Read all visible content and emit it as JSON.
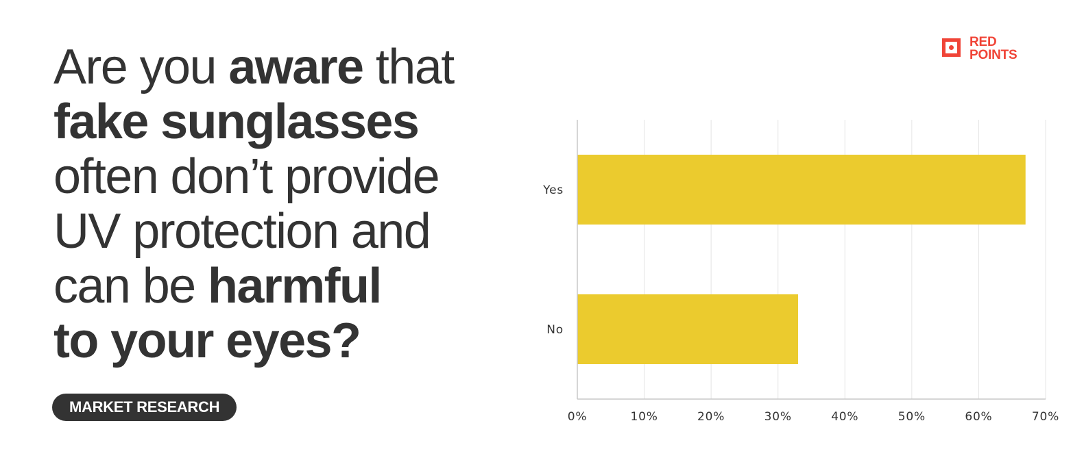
{
  "headline": {
    "line1": [
      "Are you ",
      "aware",
      " that"
    ],
    "line2": "fake sunglasses",
    "line3": "often don’t provide",
    "line4": "UV protection and",
    "line5": [
      "can be ",
      "harmful"
    ],
    "line6": "to your eyes?"
  },
  "tag": "MARKET RESEARCH",
  "logo": {
    "line1": "RED",
    "line2": "POINTS",
    "color": "#f04437"
  },
  "colors": {
    "bar": "#ebcb2e",
    "text": "#333333",
    "grid": "#e4e4e4",
    "axis": "#c8c8c8"
  },
  "chart_data": {
    "type": "bar",
    "orientation": "horizontal",
    "categories": [
      "Yes",
      "No"
    ],
    "values": [
      67,
      33
    ],
    "xlim": [
      0,
      70
    ],
    "xticks": [
      "0%",
      "10%",
      "20%",
      "30%",
      "40%",
      "50%",
      "60%",
      "70%"
    ],
    "grid": true,
    "title": "",
    "xlabel": "",
    "ylabel": ""
  }
}
